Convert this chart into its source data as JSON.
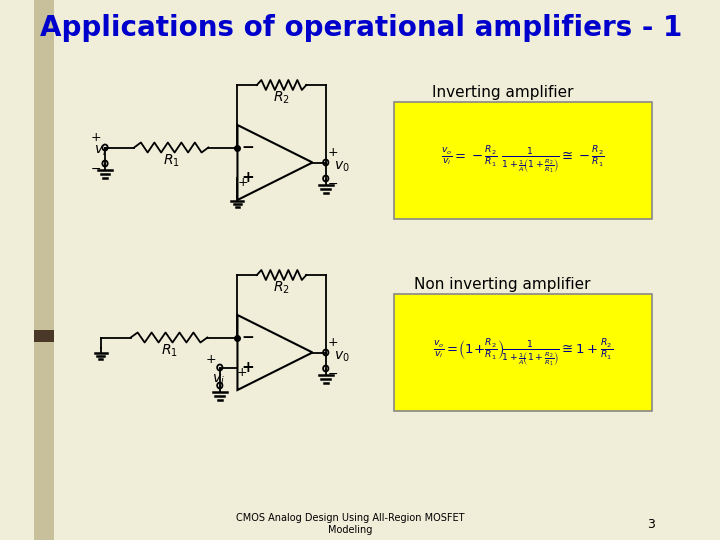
{
  "title": "Applications of operational amplifiers - 1",
  "title_color": "#0000CC",
  "title_fontsize": 20,
  "bg_color": "#F0EDD8",
  "left_strip_color": "#C8C09A",
  "left_strip2_color": "#4A3728",
  "label_inverting": "Inverting amplifier",
  "label_non_inverting": "Non inverting amplifier",
  "equation_bg": "#FFFF00",
  "footer_text": "CMOS Analog Design Using All-Region MOSFET\nModeling",
  "footer_page": "3"
}
